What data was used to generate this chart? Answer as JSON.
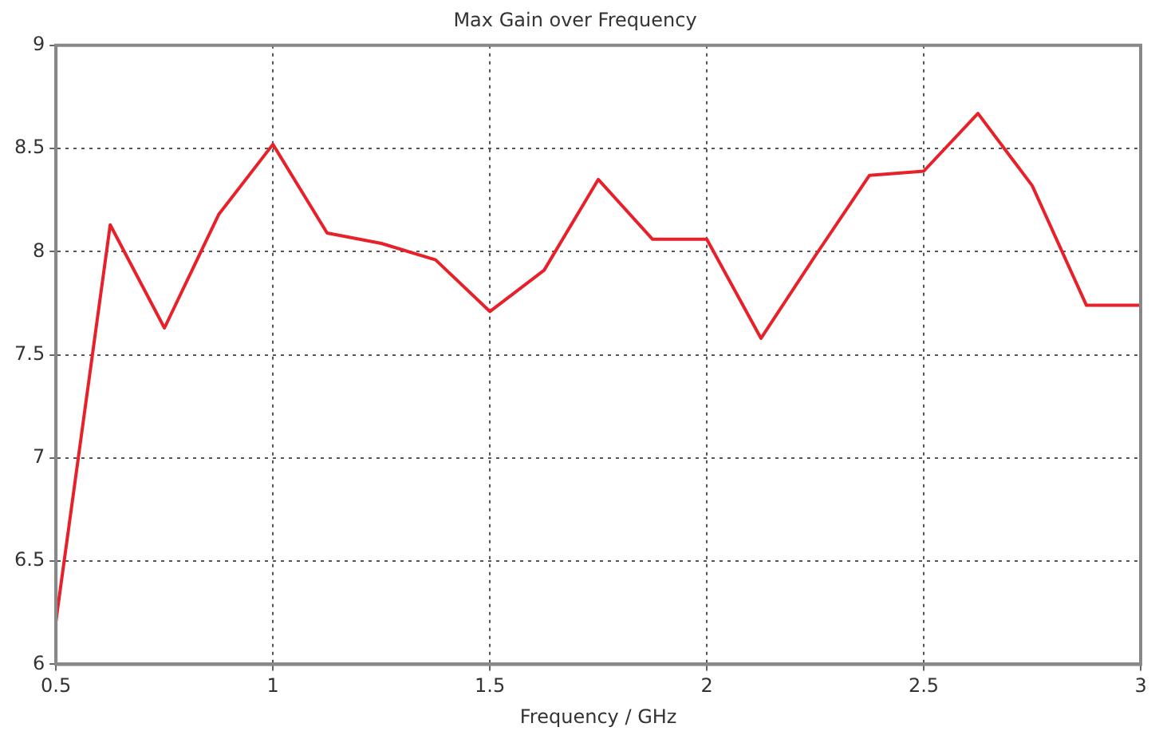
{
  "chart_data": {
    "type": "line",
    "title": "Max Gain over Frequency",
    "xlabel": "Frequency / GHz",
    "x": [
      0.5,
      0.625,
      0.75,
      0.875,
      1,
      1.125,
      1.25,
      1.375,
      1.5,
      1.625,
      1.75,
      1.875,
      2,
      2.125,
      2.25,
      2.375,
      2.5,
      2.625,
      2.75,
      2.875,
      3
    ],
    "series": [
      {
        "color": "#e8202a",
        "values": [
          6.21,
          8.13,
          7.63,
          8.18,
          8.52,
          8.09,
          8.04,
          7.96,
          7.71,
          7.91,
          8.35,
          8.06,
          8.06,
          7.58,
          7.98,
          8.37,
          8.39,
          8.67,
          8.32,
          7.74,
          7.74
        ]
      }
    ],
    "xlim": [
      0.5,
      3
    ],
    "xticks": [
      0.5,
      1,
      1.5,
      2,
      2.5,
      3
    ],
    "ylim": [
      6,
      9
    ],
    "yticks": [
      6,
      6.5,
      7,
      7.5,
      8,
      8.5,
      9
    ],
    "grid": true,
    "legend": false,
    "marker": "none",
    "line_style": "solid"
  }
}
